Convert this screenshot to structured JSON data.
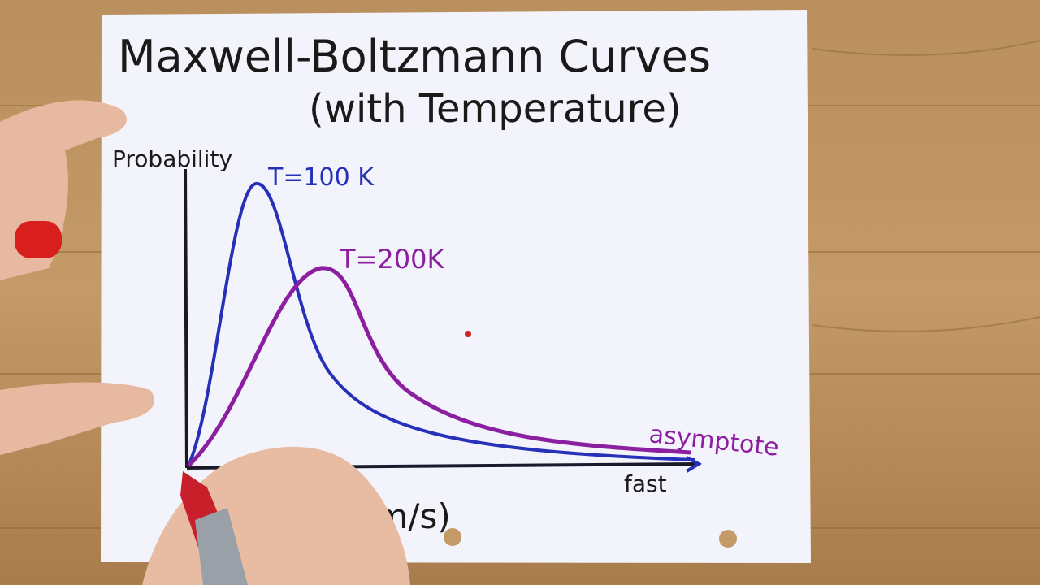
{
  "title": {
    "line1": "Maxwell-Boltzmann Curves",
    "line2": "(with Temperature)"
  },
  "axes": {
    "y_label": "Probability",
    "x_label": "Speed (m/s)",
    "x_end_label": "fast"
  },
  "curves": [
    {
      "label": "T=100 K",
      "color": "#2630b8"
    },
    {
      "label": "T=200K",
      "color": "#8c1f9f"
    }
  ],
  "annotation": "asymptote"
}
